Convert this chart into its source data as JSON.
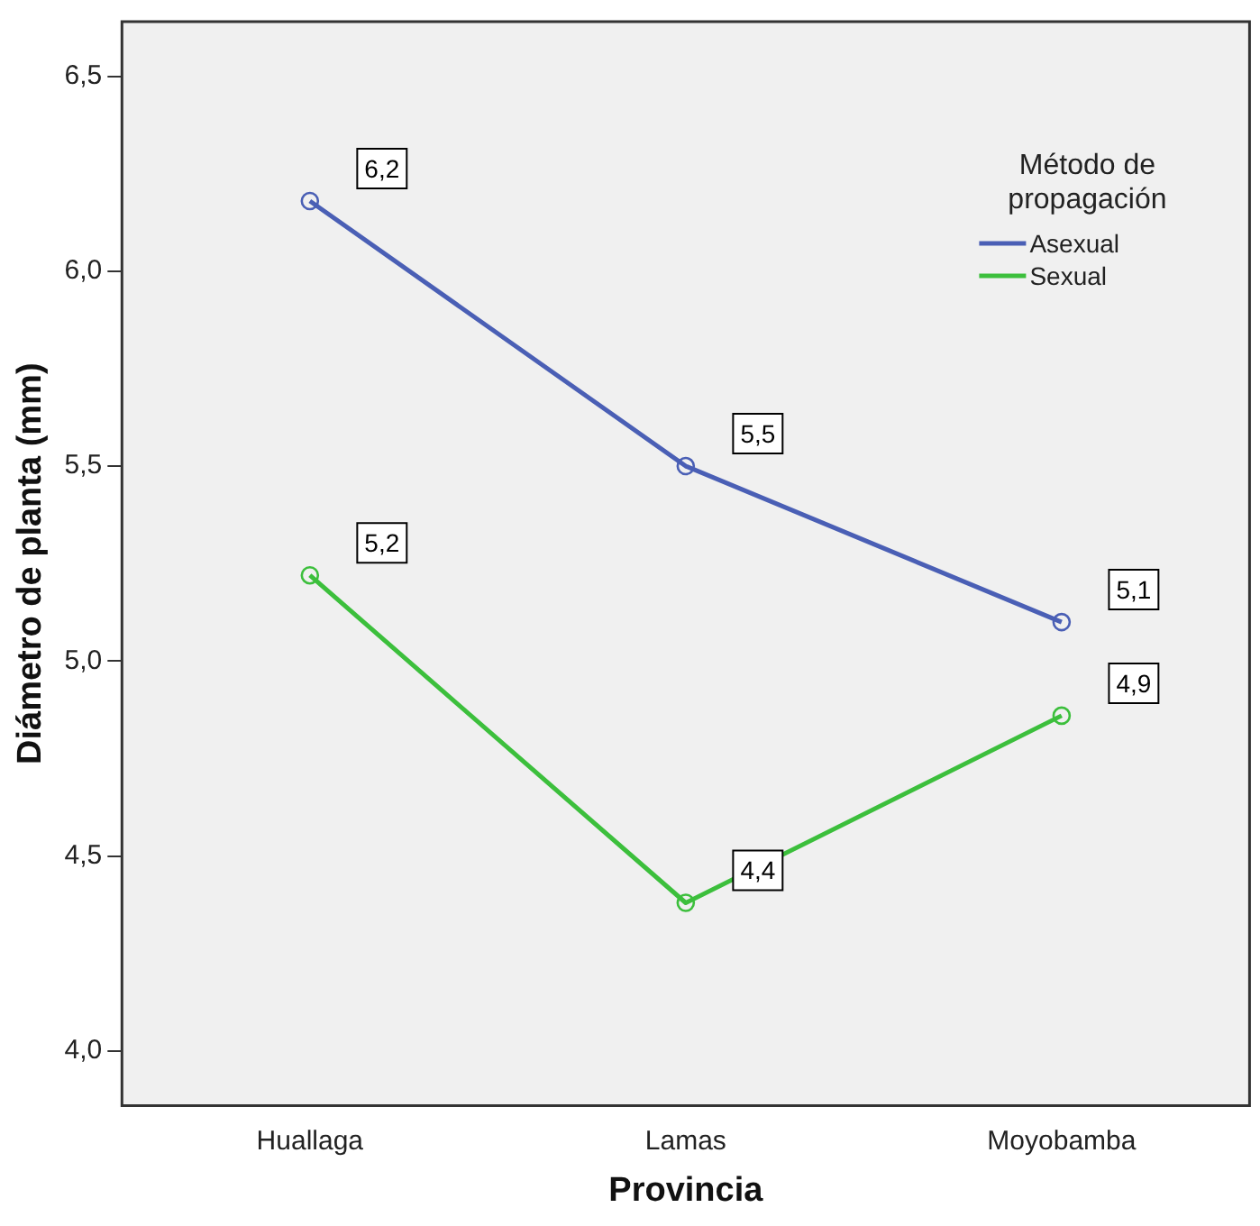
{
  "chart_data": {
    "type": "line",
    "xlabel": "Provincia",
    "ylabel": "Diámetro de planta (mm)",
    "legend_title": "Método de propagación",
    "categories": [
      "Huallaga",
      "Lamas",
      "Moyobamba"
    ],
    "series": [
      {
        "name": "Asexual",
        "color": "#4a5fb5",
        "values": [
          6.18,
          5.5,
          5.1
        ],
        "value_labels": [
          "6,2",
          "5,5",
          "5,1"
        ]
      },
      {
        "name": "Sexual",
        "color": "#3cbf3c",
        "values": [
          5.22,
          4.38,
          4.86
        ],
        "value_labels": [
          "5,2",
          "4,4",
          "4,9"
        ]
      }
    ],
    "ylim": [
      3.86,
      6.64
    ],
    "yticks": [
      {
        "value": 4.0,
        "label": "4,0"
      },
      {
        "value": 4.5,
        "label": "4,5"
      },
      {
        "value": 5.0,
        "label": "5,0"
      },
      {
        "value": 5.5,
        "label": "5,5"
      },
      {
        "value": 6.0,
        "label": "6,0"
      },
      {
        "value": 6.5,
        "label": "6,5"
      }
    ],
    "grid": false,
    "legend": "top right",
    "marker": "circle",
    "line_style": "solid"
  }
}
